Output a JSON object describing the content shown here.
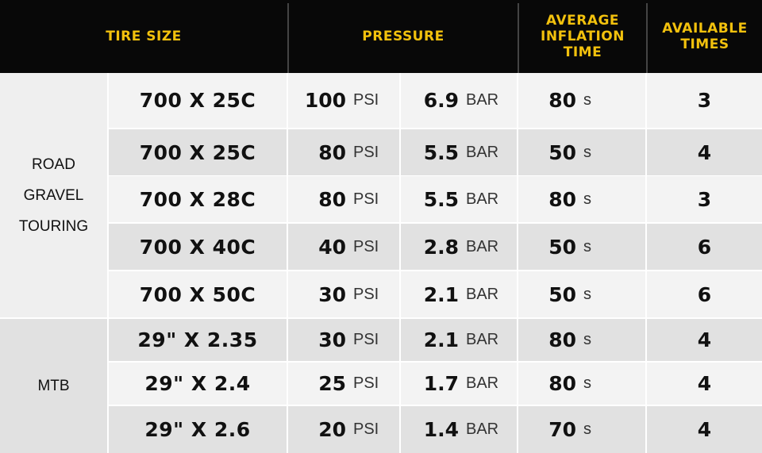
{
  "headers": {
    "tire_size": "TIRE SIZE",
    "pressure": "PRESSURE",
    "avg_inflation": [
      "AVERAGE",
      "INFLATION",
      "TIME"
    ],
    "available": [
      "AVAILABLE",
      "TIMES"
    ]
  },
  "categories": {
    "road": [
      "ROAD",
      "GRAVEL",
      "TOURING"
    ],
    "mtb": "MTB"
  },
  "rows": [
    {
      "size": "700 X 25C",
      "psi": "100",
      "psi_unit": "PSI",
      "bar": "6.9",
      "bar_unit": "BAR",
      "time": "80",
      "time_unit": "s",
      "times": "3"
    },
    {
      "size": "700 X 25C",
      "psi": "80",
      "psi_unit": "PSI",
      "bar": "5.5",
      "bar_unit": "BAR",
      "time": "50",
      "time_unit": "s",
      "times": "4"
    },
    {
      "size": "700 X 28C",
      "psi": "80",
      "psi_unit": "PSI",
      "bar": "5.5",
      "bar_unit": "BAR",
      "time": "80",
      "time_unit": "s",
      "times": "3"
    },
    {
      "size": "700 X 40C",
      "psi": "40",
      "psi_unit": "PSI",
      "bar": "2.8",
      "bar_unit": "BAR",
      "time": "50",
      "time_unit": "s",
      "times": "6"
    },
    {
      "size": "700 X 50C",
      "psi": "30",
      "psi_unit": "PSI",
      "bar": "2.1",
      "bar_unit": "BAR",
      "time": "50",
      "time_unit": "s",
      "times": "6"
    },
    {
      "size": "29\" X 2.35",
      "psi": "30",
      "psi_unit": "PSI",
      "bar": "2.1",
      "bar_unit": "BAR",
      "time": "80",
      "time_unit": "s",
      "times": "4"
    },
    {
      "size": "29\" X 2.4",
      "psi": "25",
      "psi_unit": "PSI",
      "bar": "1.7",
      "bar_unit": "BAR",
      "time": "80",
      "time_unit": "s",
      "times": "4"
    },
    {
      "size": "29\" X 2.6",
      "psi": "20",
      "psi_unit": "PSI",
      "bar": "1.4",
      "bar_unit": "BAR",
      "time": "70",
      "time_unit": "s",
      "times": "4"
    }
  ],
  "colors": {
    "header_bg": "#080808",
    "header_text": "#f2c10d",
    "row_light": "#f3f3f3",
    "row_dark": "#e1e1e1",
    "road_bg": "#efefef",
    "mtb_bg": "#e1e1e1"
  }
}
